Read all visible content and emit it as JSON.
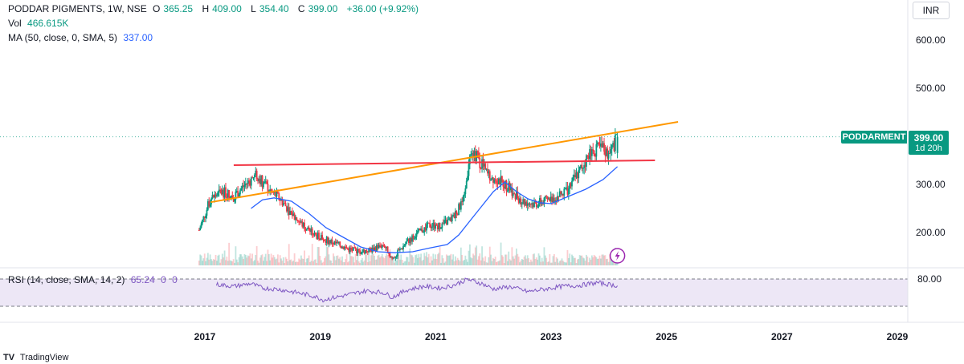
{
  "legend": {
    "symbol": "PODDAR PIGMENTS, 1W, NSE",
    "open_label": "O",
    "open": "365.25",
    "high_label": "H",
    "high": "409.00",
    "low_label": "L",
    "low": "354.40",
    "close_label": "C",
    "close": "399.00",
    "change": "+36.00 (+9.92%)",
    "vol_label": "Vol",
    "vol_value": "466.615K",
    "ma_label": "MA (50, close, 0, SMA, 5)",
    "ma_value": "337.00",
    "rsi_label": "RSI (14, close, SMA, 14, 2)",
    "rsi_value": "65.24",
    "rsi_extra1": "0",
    "rsi_extra2": "0"
  },
  "currency": "INR",
  "price_tag": {
    "ticker": "PODDARMENT",
    "price": "399.00",
    "countdown": "1d 20h"
  },
  "brand": {
    "icon": "TV",
    "name": "TradingView"
  },
  "icons": {
    "flash": "flash-icon"
  },
  "colors": {
    "up": "#089981",
    "down": "#f23645",
    "ma": "#2962ff",
    "rsi": "#7e57c2",
    "trend_upper": "#ff9800",
    "trend_lower": "#f23645",
    "rsi_band": "#ede7f6",
    "flash": "#9c27b0"
  },
  "chart_data": {
    "type": "line",
    "title": "PODDAR PIGMENTS, 1W, NSE",
    "x_ticks": [
      "2017",
      "2019",
      "2021",
      "2023",
      "2025",
      "2027",
      "2029"
    ],
    "x_range": [
      2016.7,
      2029.4
    ],
    "y_ticks": [
      "200.00",
      "300.00",
      "400.00",
      "500.00",
      "600.00"
    ],
    "ylim": [
      135,
      650
    ],
    "grid": false,
    "log_scale": false,
    "series": [
      {
        "name": "PODDAR PIGMENTS",
        "x": [
          2016.9,
          2017.1,
          2017.3,
          2017.5,
          2017.7,
          2017.9,
          2018.1,
          2018.3,
          2018.5,
          2018.7,
          2018.9,
          2019.1,
          2019.3,
          2019.5,
          2019.7,
          2019.9,
          2020.1,
          2020.25,
          2020.5,
          2020.7,
          2020.9,
          2021.1,
          2021.3,
          2021.5,
          2021.6,
          2021.75,
          2021.9,
          2022.1,
          2022.3,
          2022.5,
          2022.7,
          2022.9,
          2023.1,
          2023.3,
          2023.5,
          2023.7,
          2023.9,
          2024.0,
          2024.1,
          2024.15
        ],
        "values": [
          205,
          270,
          285,
          275,
          300,
          320,
          290,
          270,
          240,
          215,
          195,
          185,
          175,
          165,
          160,
          165,
          175,
          145,
          180,
          200,
          215,
          215,
          230,
          270,
          380,
          350,
          320,
          310,
          290,
          265,
          260,
          265,
          275,
          290,
          330,
          370,
          375,
          360,
          385,
          399
        ]
      },
      {
        "name": "MA (50, close, 0, SMA, 5)",
        "x": [
          2017.8,
          2018.0,
          2018.2,
          2018.5,
          2018.8,
          2019.1,
          2019.4,
          2019.7,
          2020.0,
          2020.3,
          2020.6,
          2020.9,
          2021.2,
          2021.4,
          2021.6,
          2021.8,
          2022.0,
          2022.2,
          2022.4,
          2022.6,
          2022.8,
          2023.0,
          2023.3,
          2023.6,
          2023.9,
          2024.15
        ],
        "values": [
          250,
          268,
          272,
          265,
          240,
          210,
          190,
          170,
          160,
          158,
          160,
          168,
          175,
          195,
          225,
          255,
          285,
          305,
          285,
          270,
          262,
          260,
          275,
          290,
          310,
          337
        ]
      },
      {
        "name": "RSI (14, close, SMA, 14, 2)",
        "x": [
          2017.2,
          2017.5,
          2017.8,
          2018.0,
          2018.3,
          2018.6,
          2018.9,
          2019.05,
          2019.2,
          2019.5,
          2019.8,
          2020.1,
          2020.25,
          2020.5,
          2020.8,
          2021.1,
          2021.3,
          2021.55,
          2021.8,
          2022.0,
          2022.3,
          2022.6,
          2022.9,
          2023.2,
          2023.5,
          2023.8,
          2024.0,
          2024.15
        ],
        "values": [
          68,
          64,
          70,
          60,
          57,
          50,
          42,
          34,
          38,
          46,
          54,
          50,
          40,
          56,
          64,
          60,
          66,
          79,
          70,
          58,
          63,
          52,
          58,
          64,
          66,
          72,
          68,
          65.24
        ]
      }
    ],
    "annotations": [
      {
        "type": "trendline",
        "color": "#ff9800",
        "x": [
          2017.1,
          2025.2
        ],
        "y": [
          263,
          430
        ]
      },
      {
        "type": "trendline",
        "color": "#f23645",
        "x": [
          2017.5,
          2024.8
        ],
        "y": [
          340,
          350
        ]
      }
    ],
    "rsi_levels": [
      80,
      20
    ],
    "rsi_tick": "80.00"
  }
}
